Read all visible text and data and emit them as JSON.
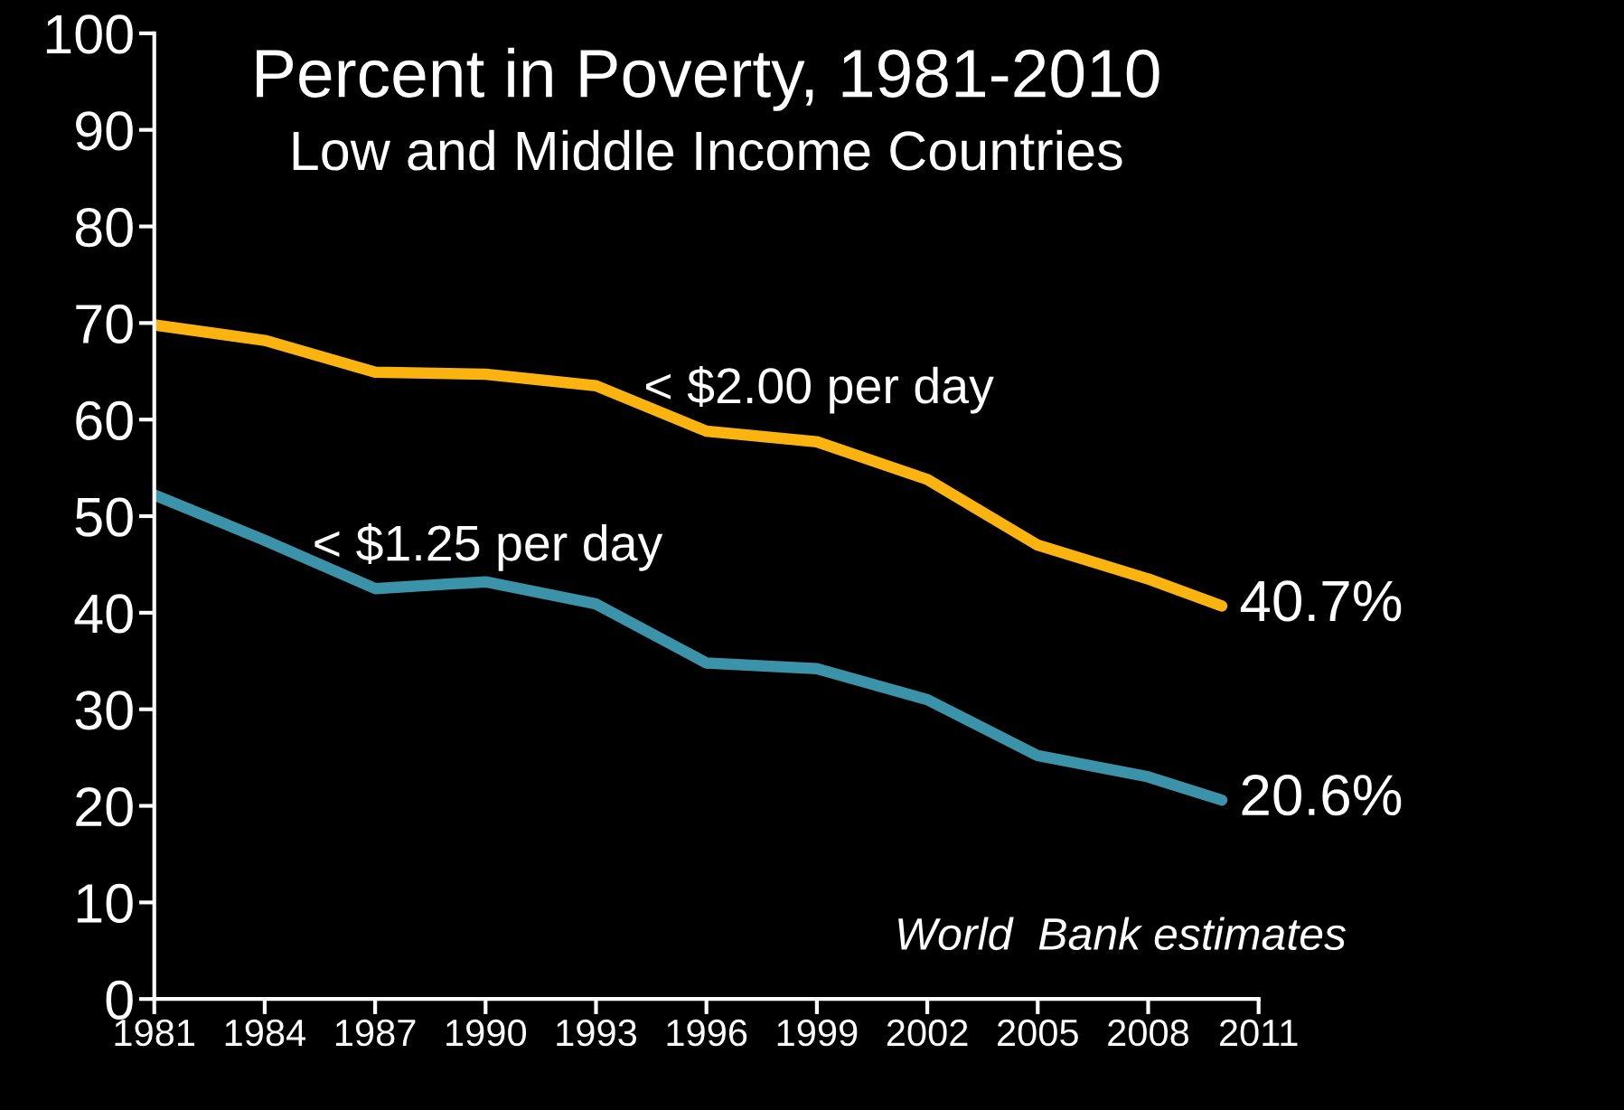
{
  "chart_data": {
    "type": "line",
    "title": "Percent in Poverty, 1981-2010",
    "subtitle": "Low and Middle Income Countries",
    "x": [
      1981,
      1984,
      1987,
      1990,
      1993,
      1996,
      1999,
      2002,
      2005,
      2008,
      2010
    ],
    "series": [
      {
        "name": "< $2.00 per day",
        "color": "#fbb30f",
        "values": [
          69.8,
          68.2,
          64.9,
          64.7,
          63.5,
          58.8,
          57.7,
          53.8,
          47.0,
          43.5,
          40.7
        ],
        "value_labels": [
          null,
          null,
          null,
          null,
          null,
          null,
          null,
          null,
          null,
          null,
          "40.7%"
        ]
      },
      {
        "name": "< $1.25 per day",
        "color": "#3a93a8",
        "values": [
          52.2,
          47.5,
          42.5,
          43.2,
          40.9,
          34.8,
          34.2,
          31.0,
          25.2,
          23.0,
          20.6
        ],
        "value_labels": [
          null,
          null,
          null,
          null,
          null,
          null,
          null,
          null,
          null,
          null,
          "20.6%"
        ]
      }
    ],
    "xlim": [
      1981,
      2011
    ],
    "xticks": [
      1981,
      1984,
      1987,
      1990,
      1993,
      1996,
      1999,
      2002,
      2005,
      2008,
      2011
    ],
    "ylim": [
      0,
      100
    ],
    "yticks": [
      0,
      10,
      20,
      30,
      40,
      50,
      60,
      70,
      80,
      90,
      100
    ],
    "grid": false,
    "legend": false,
    "marker": "none",
    "line_style": "solid",
    "annotations": [
      "World  Bank estimates"
    ]
  }
}
